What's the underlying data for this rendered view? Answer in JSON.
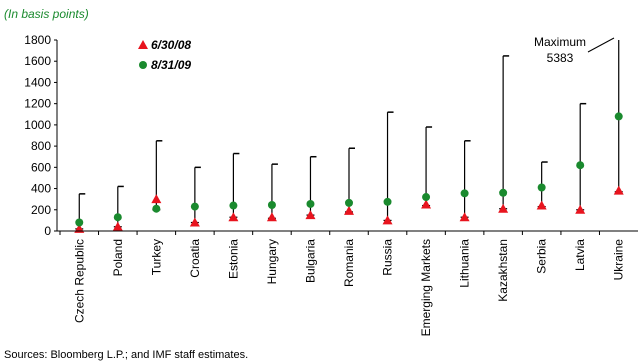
{
  "chart_data": {
    "type": "range",
    "subtitle": "(In basis points)",
    "categories": [
      "Czech Republic",
      "Poland",
      "Turkey",
      "Croatia",
      "Estonia",
      "Hungary",
      "Bulgaria",
      "Romania",
      "Russia",
      "Emerging Markets",
      "Lithuania",
      "Kazakhstan",
      "Serbia",
      "Latvia",
      "Ukraine"
    ],
    "ranges": {
      "low": [
        20,
        40,
        200,
        80,
        130,
        120,
        150,
        180,
        100,
        240,
        130,
        210,
        230,
        200,
        370
      ],
      "high": [
        350,
        420,
        850,
        600,
        730,
        630,
        700,
        780,
        1120,
        980,
        850,
        1650,
        650,
        1200,
        5383
      ],
      "color": "#000000"
    },
    "series": [
      {
        "name": "6/30/08",
        "color": "#e8141e",
        "marker": "triangle",
        "values": [
          20,
          40,
          300,
          80,
          130,
          130,
          150,
          190,
          100,
          250,
          130,
          210,
          240,
          200,
          380
        ]
      },
      {
        "name": "8/31/09",
        "color": "#1a8a2e",
        "marker": "circle",
        "values": [
          80,
          130,
          210,
          230,
          240,
          245,
          255,
          265,
          275,
          320,
          355,
          360,
          410,
          620,
          1080
        ]
      }
    ],
    "ylim": [
      0,
      1800
    ],
    "yticks": [
      0,
      200,
      400,
      600,
      800,
      1000,
      1200,
      1400,
      1600,
      1800
    ],
    "annotation": {
      "text": "Maximum",
      "value": 5383
    },
    "source": "Sources: Bloomberg L.P.; and IMF staff estimates."
  }
}
